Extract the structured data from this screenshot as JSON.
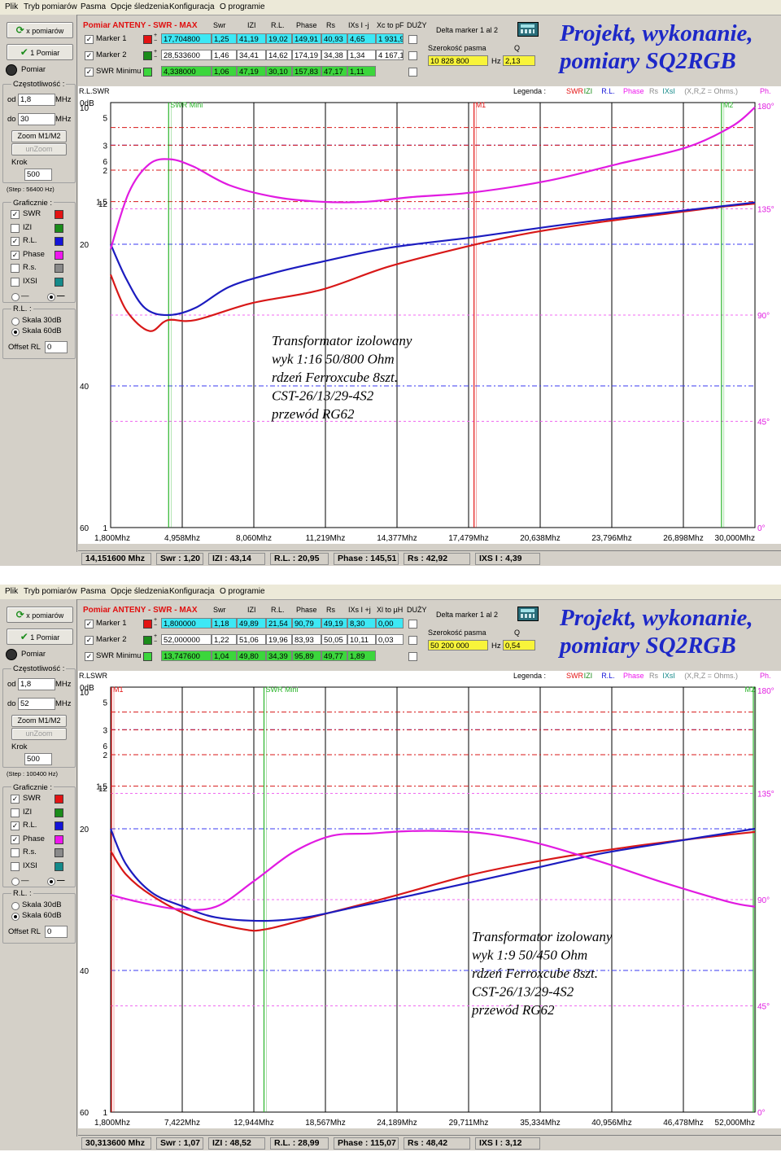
{
  "panels": [
    {
      "menu": [
        "Plik",
        "Tryb pomiarów",
        "Pasma",
        "Opcje śledzenia",
        "Konfiguracja",
        "O programie"
      ],
      "sidebar": {
        "mode_button": "x pomiarów",
        "measure_button": "1 Pomiar",
        "measure_label": "Pomiar",
        "freq_group": "Częstotliwość :",
        "from_label": "od",
        "from_value": "1,8",
        "from_unit": "MHz",
        "to_label": "do",
        "to_value": "30",
        "to_unit": "MHz",
        "zoom_button": "Zoom M1/M2",
        "unzoom_button": "unZoom",
        "step_label": "Krok",
        "step_value": "500",
        "step_info": "(Step : 56400 Hz)",
        "graph_group": "Graficznie :",
        "graphs": [
          {
            "label": "SWR",
            "checked": true,
            "color": "#e31313"
          },
          {
            "label": "IZI",
            "checked": false,
            "color": "#1a8c1a"
          },
          {
            "label": "R.L.",
            "checked": true,
            "color": "#1414d8"
          },
          {
            "label": "Phase",
            "checked": true,
            "color": "#ee16ee"
          },
          {
            "label": "R.s.",
            "checked": false,
            "color": "#8a8a8a"
          },
          {
            "label": "IXSI",
            "checked": false,
            "color": "#148a8a"
          }
        ],
        "rl_group": "R.L. :",
        "scale30": "Skala 30dB",
        "scale60": "Skala 60dB",
        "offset_label": "Offset RL",
        "offset_value": "0"
      },
      "top": {
        "title_a": "Pomiar ANTENY - SWR",
        "title_b": " - MAX",
        "headers": [
          "Swr",
          "IZI",
          "R.L.",
          "Phase",
          "Rs",
          "IXs I -j",
          "Xc to pF",
          "DUŻY"
        ],
        "rows": [
          {
            "label": "Marker 1",
            "color": "#e31313",
            "freq": "17,704800",
            "vals": [
              "1,25",
              "41,19",
              "19,02",
              "149,91",
              "40,93",
              "4,65",
              "1 931,9"
            ],
            "bg": "cyan"
          },
          {
            "label": "Marker 2",
            "color": "#1a8c1a",
            "freq": "28,533600",
            "vals": [
              "1,46",
              "34,41",
              "14,62",
              "174,19",
              "34,38",
              "1,34",
              "4 167,1"
            ],
            "bg": "white"
          },
          {
            "label": "SWR Minimu",
            "color": "#3cd63c",
            "freq": "4,338000",
            "vals": [
              "1,06",
              "47,19",
              "30,10",
              "157,83",
              "47,17",
              "1,11",
              ""
            ],
            "bg": "green"
          }
        ],
        "delta_label": "Delta marker 1 al 2",
        "bw_label": "Szerokość pasma",
        "bw_value": "10 828 800",
        "hz": "Hz",
        "q_label": "Q",
        "q_value": "2,13"
      },
      "brand": [
        "Projekt, wykonanie,",
        "pomiary SQ2RGB"
      ],
      "legend": {
        "head": "R.L.SWR",
        "label": "Legenda :",
        "items": [
          {
            "t": "SWR",
            "c": "#e31313"
          },
          {
            "t": "IZI",
            "c": "#1a8c1a"
          },
          {
            "t": "R.L.",
            "c": "#1414d8"
          },
          {
            "t": "Phase",
            "c": "#ee16ee"
          },
          {
            "t": "Rs",
            "c": "#8a8a8a"
          },
          {
            "t": "IXsI",
            "c": "#148a8a"
          },
          {
            "t": "(X,R,Z = Ohms.)",
            "c": "#8a8a8a"
          }
        ],
        "ph": "Ph."
      },
      "note": [
        "Transformator izolowany",
        "wyk 1:16   50/800 Ohm",
        "rdzeń Ferroxcube 8szt.",
        "CST-26/13/29-4S2",
        "przewód RG62"
      ],
      "status": [
        "14,151600 Mhz",
        "Swr : 1,20",
        "IZI : 43,14",
        "R.L. : 20,95",
        "Phase : 145,51",
        "Rs : 42,92",
        "IXS I : 4,39"
      ],
      "chart_data": {
        "type": "line",
        "x_ticks": [
          "1,800Mhz",
          "4,958Mhz",
          "8,060Mhz",
          "11,219Mhz",
          "14,377Mhz",
          "17,479Mhz",
          "20,638Mhz",
          "23,796Mhz",
          "26,898Mhz",
          "30,000Mhz"
        ],
        "xlim": [
          1.8,
          30
        ],
        "rl_ticks": [
          "0dB",
          "10",
          "20",
          "40",
          "60"
        ],
        "swr_ticks": [
          "6",
          "12",
          "5",
          "3",
          "2",
          "1.5",
          "1"
        ],
        "ph_ticks": [
          "180°",
          "135°",
          "90°",
          "45°",
          "0°"
        ],
        "markers": [
          {
            "label": "SWR Mini",
            "x": 4.338,
            "color": "#2ab52a"
          },
          {
            "label": "M1",
            "x": 17.7048,
            "color": "#e31313"
          },
          {
            "label": "M2",
            "x": 28.5336,
            "color": "#2ab52a"
          }
        ],
        "series": [
          {
            "name": "SWR",
            "color": "#d81818",
            "x": [
              1.8,
              2.5,
              3.5,
              4.3,
              5.5,
              8,
              11,
              14,
              17.7,
              20,
              23,
              26,
              28.5,
              30
            ],
            "y": [
              1.13,
              1.07,
              1.05,
              1.06,
              1.06,
              1.08,
              1.1,
              1.15,
              1.22,
              1.27,
              1.33,
              1.39,
              1.45,
              1.48
            ]
          },
          {
            "name": "R.L.",
            "color": "#1c1cbf",
            "x": [
              1.8,
              2.5,
              3.3,
              4.3,
              5.5,
              7,
              9,
              11,
              14,
              17.7,
              21,
              24,
              27,
              30
            ],
            "y": [
              20,
              25,
              29,
              30,
              29,
              26,
              24,
              22.5,
              20.5,
              19,
              17.5,
              16.3,
              15.2,
              14.1
            ]
          },
          {
            "name": "Phase",
            "color": "#e11be1",
            "x": [
              1.8,
              2.6,
              3.5,
              4.4,
              5.4,
              7,
              9,
              11,
              13,
              15,
              17.7,
              21,
              24,
              27,
              29,
              30
            ],
            "y": [
              118,
              142,
              154,
              156,
              153,
              145,
              140,
              138,
              138,
              140,
              142,
              147,
              154,
              161,
              170,
              178
            ]
          }
        ]
      }
    },
    {
      "menu": [
        "Plik",
        "Tryb pomiarów",
        "Pasma",
        "Opcje śledzenia",
        "Konfiguracja",
        "O programie"
      ],
      "sidebar": {
        "mode_button": "x pomiarów",
        "measure_button": "1 Pomiar",
        "measure_label": "Pomiar",
        "freq_group": "Częstotliwość :",
        "from_label": "od",
        "from_value": "1,8",
        "from_unit": "MHz",
        "to_label": "do",
        "to_value": "52",
        "to_unit": "MHz",
        "zoom_button": "Zoom M1/M2",
        "unzoom_button": "unZoom",
        "step_label": "Krok",
        "step_value": "500",
        "step_info": "(Step : 100400 Hz)",
        "graph_group": "Graficznie :",
        "graphs": [
          {
            "label": "SWR",
            "checked": true,
            "color": "#e31313"
          },
          {
            "label": "IZI",
            "checked": false,
            "color": "#1a8c1a"
          },
          {
            "label": "R.L.",
            "checked": true,
            "color": "#1414d8"
          },
          {
            "label": "Phase",
            "checked": true,
            "color": "#ee16ee"
          },
          {
            "label": "R.s.",
            "checked": false,
            "color": "#8a8a8a"
          },
          {
            "label": "IXSI",
            "checked": false,
            "color": "#148a8a"
          }
        ],
        "rl_group": "R.L. :",
        "scale30": "Skala 30dB",
        "scale60": "Skala 60dB",
        "offset_label": "Offset RL",
        "offset_value": "0"
      },
      "top": {
        "title_a": "Pomiar ANTENY - SWR",
        "title_b": " - MAX",
        "headers": [
          "Swr",
          "IZI",
          "R.L.",
          "Phase",
          "Rs",
          "IXs I +j",
          "Xl to µH",
          "DUŻY"
        ],
        "rows": [
          {
            "label": "Marker 1",
            "color": "#e31313",
            "freq": "1,800000",
            "vals": [
              "1,18",
              "49,89",
              "21,54",
              "90,79",
              "49,19",
              "8,30",
              "0,00"
            ],
            "bg": "cyan"
          },
          {
            "label": "Marker 2",
            "color": "#1a8c1a",
            "freq": "52,000000",
            "vals": [
              "1,22",
              "51,06",
              "19,96",
              "83,93",
              "50,05",
              "10,11",
              "0,03"
            ],
            "bg": "white"
          },
          {
            "label": "SWR Minimu",
            "color": "#3cd63c",
            "freq": "13,747600",
            "vals": [
              "1,04",
              "49,80",
              "34,39",
              "95,89",
              "49,77",
              "1,89",
              ""
            ],
            "bg": "green"
          }
        ],
        "delta_label": "Delta marker 1 al 2",
        "bw_label": "Szerokość pasma",
        "bw_value": "50 200 000",
        "hz": "Hz",
        "q_label": "Q",
        "q_value": "0,54"
      },
      "brand": [
        "Projekt, wykonanie,",
        "pomiary SQ2RGB"
      ],
      "legend": {
        "head": "R.LSWR",
        "label": "Legenda :",
        "items": [
          {
            "t": "SWR",
            "c": "#e31313"
          },
          {
            "t": "IZI",
            "c": "#1a8c1a"
          },
          {
            "t": "R.L.",
            "c": "#1414d8"
          },
          {
            "t": "Phase",
            "c": "#ee16ee"
          },
          {
            "t": "Rs",
            "c": "#8a8a8a"
          },
          {
            "t": "IXsI",
            "c": "#148a8a"
          },
          {
            "t": "(X,R,Z = Ohms.)",
            "c": "#8a8a8a"
          }
        ],
        "ph": "Ph."
      },
      "note": [
        "Transformator izolowany",
        "wyk 1:9    50/450 Ohm",
        "rdzeń Ferroxcube 8szt.",
        "CST-26/13/29-4S2",
        "przewód RG62"
      ],
      "status": [
        "30,313600 Mhz",
        "Swr : 1,07",
        "IZI : 48,52",
        "R.L. : 28,99",
        "Phase : 115,07",
        "Rs : 48,42",
        "IXS I : 3,12"
      ],
      "chart_data": {
        "type": "line",
        "x_ticks": [
          "1,800Mhz",
          "7,422Mhz",
          "12,944Mhz",
          "18,567Mhz",
          "24,189Mhz",
          "29,711Mhz",
          "35,334Mhz",
          "40,956Mhz",
          "46,478Mhz",
          "52,000Mhz"
        ],
        "xlim": [
          1.8,
          52
        ],
        "rl_ticks": [
          "0dB",
          "10",
          "20",
          "40",
          "60"
        ],
        "swr_ticks": [
          "6",
          "12",
          "5",
          "3",
          "2",
          "1.5",
          "1"
        ],
        "ph_ticks": [
          "180°",
          "135°",
          "90°",
          "45°",
          "0°"
        ],
        "markers": [
          {
            "label": "M1",
            "x": 1.8,
            "color": "#e31313"
          },
          {
            "label": "SWR Mini",
            "x": 13.7476,
            "color": "#2ab52a"
          },
          {
            "label": "M2",
            "x": 52,
            "color": "#2ab52a"
          }
        ],
        "series": [
          {
            "name": "SWR",
            "color": "#d81818",
            "x": [
              1.8,
              3,
              5,
              8,
              12,
              14,
              18,
              24,
              30,
              36,
              42,
              48,
              52
            ],
            "y": [
              1.15,
              1.1,
              1.07,
              1.05,
              1.04,
              1.04,
              1.05,
              1.07,
              1.1,
              1.13,
              1.16,
              1.19,
              1.21
            ]
          },
          {
            "name": "R.L.",
            "color": "#1c1cbf",
            "x": [
              1.8,
              3,
              5,
              7.5,
              10,
              13.7,
              17,
              21,
              25,
              30,
              35,
              40,
              45,
              52
            ],
            "y": [
              20,
              25,
              29,
              31,
              32.5,
              33,
              32.5,
              31,
              29.5,
              27.5,
              25.5,
              23.5,
              22,
              20
            ]
          },
          {
            "name": "Phase",
            "color": "#e11be1",
            "x": [
              1.8,
              4,
              7,
              10,
              13,
              16,
              19,
              22,
              25,
              28,
              31,
              35,
              40,
              45,
              50,
              52
            ],
            "y": [
              92,
              89,
              86,
              87,
              98,
              110,
              117,
              118,
              119,
              119,
              118,
              114,
              106,
              97,
              89,
              87
            ]
          }
        ]
      }
    }
  ]
}
